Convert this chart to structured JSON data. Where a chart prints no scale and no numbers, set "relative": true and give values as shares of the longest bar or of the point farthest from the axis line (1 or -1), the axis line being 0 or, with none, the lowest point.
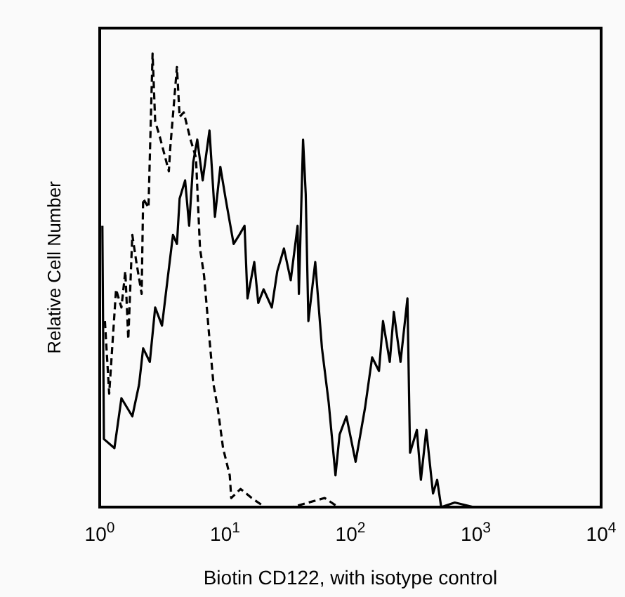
{
  "chart_data": {
    "type": "line",
    "relative": true,
    "log": "x",
    "xlabel": "Biotin CD122, with isotype control",
    "ylabel": "Relative Cell Number",
    "xlim": [
      1,
      10000
    ],
    "xticks": [
      {
        "value": 1,
        "label": "10$^{0}$"
      },
      {
        "value": 10,
        "label": "10$^{1}$"
      },
      {
        "value": 100,
        "label": "10$^{2}$"
      },
      {
        "value": 1000,
        "label": "10$^{3}$"
      },
      {
        "value": 10000,
        "label": "10$^{4}$"
      }
    ],
    "grid": false,
    "marker": "none",
    "series": [
      {
        "color": "#000000",
        "line_style": "solid",
        "x": [
          1.05,
          1.08,
          1.31,
          1.49,
          1.82,
          2.06,
          2.22,
          2.51,
          2.77,
          3.14,
          3.47,
          3.84,
          4.13,
          4.34,
          4.8,
          5.17,
          5.57,
          6.0,
          6.63,
          7.51,
          8.3,
          9.17,
          10.1,
          11.7,
          13.0,
          14.3,
          15.1,
          17.1,
          18.4,
          20.3,
          23.6,
          26.1,
          29.5,
          33.4,
          37.9,
          38.8,
          41.9,
          44.0,
          46.2,
          52.4,
          59.3,
          67.1,
          76.0,
          82.0,
          92.9,
          110,
          131,
          149,
          169,
          182,
          206,
          222,
          251,
          285,
          299,
          339,
          365,
          403,
          456,
          492,
          530,
          680,
          963
        ],
        "values": [
          0.62,
          0.15,
          0.13,
          0.24,
          0.2,
          0.27,
          0.35,
          0.32,
          0.44,
          0.4,
          0.5,
          0.6,
          0.58,
          0.68,
          0.72,
          0.62,
          0.76,
          0.81,
          0.72,
          0.83,
          0.64,
          0.75,
          0.68,
          0.58,
          0.6,
          0.62,
          0.46,
          0.54,
          0.45,
          0.48,
          0.44,
          0.52,
          0.57,
          0.5,
          0.62,
          0.47,
          0.81,
          0.69,
          0.41,
          0.54,
          0.35,
          0.23,
          0.07,
          0.16,
          0.2,
          0.1,
          0.22,
          0.33,
          0.3,
          0.41,
          0.32,
          0.43,
          0.32,
          0.46,
          0.12,
          0.17,
          0.06,
          0.17,
          0.03,
          0.06,
          0.0,
          0.01,
          0.0
        ]
      },
      {
        "color": "#000000",
        "line_style": "dashed",
        "x": [
          1.1,
          1.19,
          1.35,
          1.49,
          1.6,
          1.69,
          1.82,
          1.96,
          2.16,
          2.22,
          2.45,
          2.64,
          2.77,
          2.99,
          3.56,
          3.65,
          4.13,
          4.34,
          4.68,
          5.3,
          5.86,
          6.31,
          6.8,
          7.15,
          7.51,
          8.09,
          8.72,
          9.64,
          10.9,
          11.2,
          13.3,
          16.3,
          20.8,
          34.3,
          62.3,
          80.0
        ],
        "values": [
          0.41,
          0.25,
          0.48,
          0.44,
          0.52,
          0.37,
          0.6,
          0.54,
          0.47,
          0.68,
          0.66,
          1.0,
          0.85,
          0.82,
          0.74,
          0.79,
          0.97,
          0.86,
          0.87,
          0.81,
          0.77,
          0.57,
          0.51,
          0.44,
          0.37,
          0.27,
          0.22,
          0.13,
          0.07,
          0.02,
          0.04,
          0.02,
          0.0,
          0.0,
          0.02,
          0.0
        ]
      }
    ]
  }
}
